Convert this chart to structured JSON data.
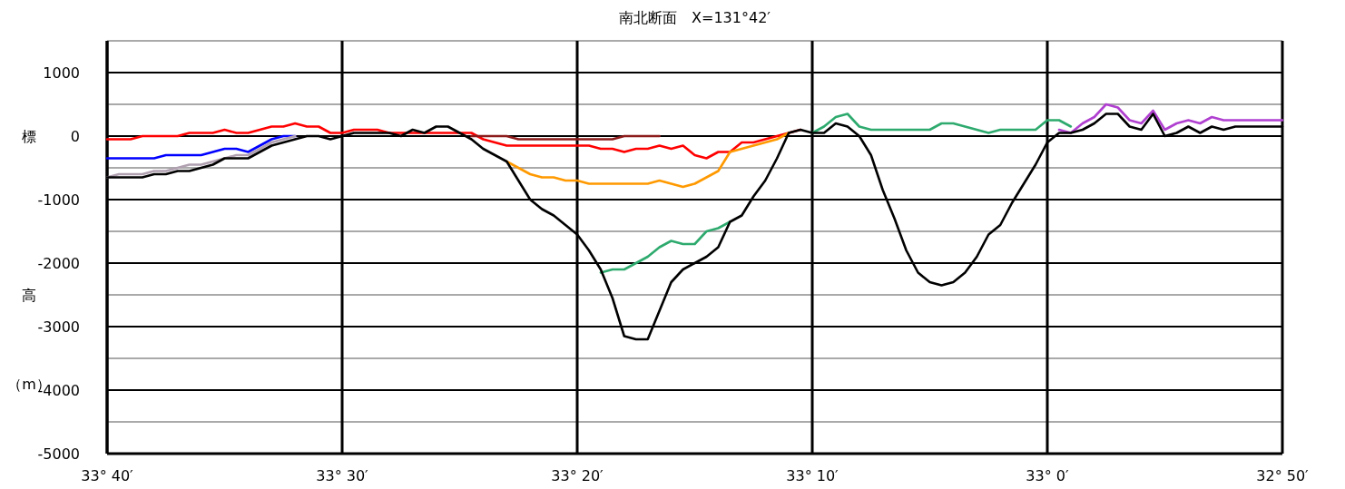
{
  "chart_data": {
    "type": "line",
    "title": "南北断面　X=131°42′",
    "ylabel": "標高（m）",
    "categories": [
      "33° 40′",
      null,
      null,
      null,
      null,
      null,
      null,
      null,
      null,
      null,
      null,
      null,
      null,
      null,
      null,
      null,
      null,
      null,
      null,
      null,
      "33° 30′",
      null,
      null,
      null,
      null,
      null,
      null,
      null,
      null,
      null,
      null,
      null,
      null,
      null,
      null,
      null,
      null,
      null,
      null,
      null,
      "33° 20′",
      null,
      null,
      null,
      null,
      null,
      null,
      null,
      null,
      null,
      null,
      null,
      null,
      null,
      null,
      null,
      null,
      null,
      null,
      null,
      "33° 10′",
      null,
      null,
      null,
      null,
      null,
      null,
      null,
      null,
      null,
      null,
      null,
      null,
      null,
      null,
      null,
      null,
      null,
      null,
      null,
      "33° 0′",
      null,
      null,
      null,
      null,
      null,
      null,
      null,
      null,
      null,
      null,
      null,
      null,
      null,
      null,
      null,
      null,
      null,
      null,
      null,
      "32° 50′"
    ],
    "ylim": [
      -5000,
      1500
    ],
    "yticks": [
      {
        "value": 1500,
        "label": null
      },
      1000,
      {
        "value": 500,
        "label": null
      },
      0,
      {
        "value": -500,
        "label": null
      },
      -1000,
      {
        "value": -1500,
        "label": null
      },
      -2000,
      {
        "value": -2500,
        "label": null
      },
      -3000,
      {
        "value": -3500,
        "label": null
      },
      -4000,
      {
        "value": -4500,
        "label": null
      },
      -5000
    ],
    "grid": true,
    "marker": "none",
    "line_style": "solid",
    "series": [
      {
        "color": "#ff0000",
        "values": [
          -50,
          -50,
          -50,
          0,
          0,
          0,
          0,
          50,
          50,
          50,
          100,
          50,
          50,
          100,
          150,
          150,
          200,
          150,
          150,
          50,
          50,
          100,
          100,
          100,
          50,
          50,
          50,
          50,
          50,
          50,
          50,
          50,
          -50,
          -100,
          -150,
          -150,
          -150,
          -150,
          -150,
          -150,
          -150,
          -150,
          -200,
          -200,
          -250,
          -200,
          -200,
          -150,
          -200,
          -150,
          -300,
          -350,
          -250,
          -250,
          -100,
          -100,
          -50,
          0,
          50,
          100,
          null,
          null,
          null,
          null,
          null,
          null,
          null,
          null,
          null,
          null,
          null,
          null,
          null,
          null,
          null,
          null,
          null,
          null,
          null,
          null,
          null,
          null,
          null,
          null,
          null,
          null,
          null,
          null,
          null,
          null,
          null,
          null,
          null,
          null,
          null,
          null,
          null,
          null,
          null,
          null,
          null
        ]
      },
      {
        "color": "#8b1a1a",
        "values": [
          null,
          null,
          null,
          null,
          null,
          null,
          null,
          null,
          null,
          null,
          null,
          null,
          null,
          null,
          null,
          null,
          null,
          null,
          null,
          null,
          null,
          null,
          null,
          null,
          null,
          null,
          null,
          null,
          null,
          null,
          null,
          0,
          0,
          0,
          0,
          -50,
          -50,
          -50,
          -50,
          -50,
          -50,
          -50,
          -50,
          -50,
          0,
          0,
          0,
          0,
          null,
          null,
          null,
          null,
          null,
          null,
          null,
          null,
          null,
          null,
          null,
          null,
          null,
          null,
          null,
          null,
          null,
          null,
          null,
          null,
          null,
          null,
          null,
          null,
          null,
          null,
          null,
          null,
          null,
          null,
          null,
          null,
          null,
          null,
          null,
          null,
          null,
          null,
          null,
          null,
          null,
          null,
          null,
          null,
          null,
          null,
          null,
          null,
          null,
          null,
          null,
          null,
          null
        ]
      },
      {
        "color": "#0000ff",
        "values": [
          -350,
          -350,
          -350,
          -350,
          -350,
          -300,
          -300,
          -300,
          -300,
          -250,
          -200,
          -200,
          -250,
          -150,
          -50,
          0,
          0,
          null,
          null,
          null,
          null,
          null,
          null,
          null,
          null,
          null,
          null,
          null,
          null,
          null,
          null,
          null,
          null,
          null,
          null,
          null,
          null,
          null,
          null,
          null,
          null,
          null,
          null,
          null,
          null,
          null,
          null,
          null,
          null,
          null,
          null,
          null,
          null,
          null,
          null,
          null,
          null,
          null,
          null,
          null,
          null,
          null,
          null,
          null,
          null,
          null,
          null,
          null,
          null,
          null,
          null,
          null,
          null,
          null,
          null,
          null,
          null,
          null,
          null,
          null,
          null,
          null,
          null,
          null,
          null,
          null,
          null,
          null,
          null,
          null,
          null,
          null,
          null,
          null,
          null,
          null,
          null,
          null,
          null,
          null,
          null
        ]
      },
      {
        "color": "#ff9900",
        "values": [
          null,
          null,
          null,
          null,
          null,
          null,
          null,
          null,
          null,
          null,
          null,
          null,
          null,
          null,
          null,
          null,
          null,
          null,
          null,
          null,
          null,
          null,
          null,
          null,
          null,
          null,
          null,
          null,
          null,
          null,
          null,
          null,
          null,
          null,
          -400,
          -500,
          -600,
          -650,
          -650,
          -700,
          -700,
          -750,
          -750,
          -750,
          -750,
          -750,
          -750,
          -700,
          -750,
          -800,
          -750,
          -650,
          -550,
          -250,
          -200,
          -150,
          -100,
          -50,
          50,
          null,
          null,
          null,
          null,
          null,
          null,
          null,
          null,
          null,
          null,
          null,
          null,
          null,
          null,
          null,
          null,
          null,
          null,
          null,
          null,
          null,
          null,
          null,
          null,
          null,
          null,
          null,
          null,
          null,
          null,
          null,
          null,
          null,
          null,
          null,
          null,
          null,
          null,
          null,
          null,
          null,
          null
        ]
      },
      {
        "color": "#2eaa6e",
        "values": [
          null,
          null,
          null,
          null,
          null,
          null,
          null,
          null,
          null,
          null,
          null,
          null,
          null,
          null,
          null,
          null,
          null,
          null,
          null,
          null,
          null,
          null,
          null,
          null,
          null,
          null,
          null,
          null,
          null,
          null,
          null,
          null,
          null,
          null,
          null,
          null,
          null,
          null,
          null,
          null,
          null,
          null,
          -2150,
          -2100,
          -2100,
          -2000,
          -1900,
          -1750,
          -1650,
          -1700,
          -1700,
          -1500,
          -1450,
          -1350,
          null,
          null,
          null,
          null,
          null,
          null,
          50,
          150,
          300,
          350,
          150,
          100,
          100,
          100,
          100,
          100,
          100,
          200,
          200,
          150,
          100,
          50,
          100,
          100,
          100,
          100,
          250,
          250,
          150,
          null,
          null,
          null,
          null,
          null,
          null,
          null,
          null,
          null,
          null,
          null,
          null,
          null,
          null,
          null,
          null,
          null,
          null
        ]
      },
      {
        "color": "#b0a0b0",
        "values": [
          -650,
          -600,
          -600,
          -600,
          -550,
          -550,
          -500,
          -450,
          -450,
          -400,
          -350,
          -300,
          -300,
          -200,
          -100,
          -50,
          0,
          null,
          null,
          null,
          null,
          null,
          null,
          null,
          null,
          null,
          null,
          null,
          null,
          null,
          null,
          null,
          null,
          null,
          null,
          null,
          null,
          null,
          null,
          null,
          null,
          null,
          null,
          null,
          null,
          null,
          null,
          null,
          null,
          null,
          null,
          null,
          null,
          null,
          null,
          null,
          null,
          null,
          null,
          null,
          null,
          null,
          null,
          null,
          null,
          null,
          null,
          null,
          null,
          null,
          null,
          null,
          null,
          null,
          null,
          null,
          null,
          null,
          null,
          null,
          null,
          null,
          null,
          null,
          null,
          null,
          null,
          null,
          null,
          null,
          null,
          null,
          null,
          null,
          null,
          null,
          null,
          null,
          null,
          null,
          null
        ]
      },
      {
        "color": "#b040d0",
        "values": [
          null,
          null,
          null,
          null,
          null,
          null,
          null,
          null,
          null,
          null,
          null,
          null,
          null,
          null,
          null,
          null,
          null,
          null,
          null,
          null,
          null,
          null,
          null,
          null,
          null,
          null,
          null,
          null,
          null,
          null,
          null,
          null,
          null,
          null,
          null,
          null,
          null,
          null,
          null,
          null,
          null,
          null,
          null,
          null,
          null,
          null,
          null,
          null,
          null,
          null,
          null,
          null,
          null,
          null,
          null,
          null,
          null,
          null,
          null,
          null,
          null,
          null,
          null,
          null,
          null,
          null,
          null,
          null,
          null,
          null,
          null,
          null,
          null,
          null,
          null,
          null,
          null,
          null,
          null,
          null,
          null,
          100,
          50,
          200,
          300,
          500,
          450,
          250,
          200,
          400,
          100,
          200,
          250,
          200,
          300,
          250,
          250,
          250,
          250,
          250,
          250
        ]
      },
      {
        "color": "#000000",
        "values": [
          -650,
          -650,
          -650,
          -650,
          -600,
          -600,
          -550,
          -550,
          -500,
          -450,
          -350,
          -350,
          -350,
          -250,
          -150,
          -100,
          -50,
          0,
          0,
          -50,
          0,
          50,
          50,
          50,
          50,
          0,
          100,
          50,
          150,
          150,
          50,
          -50,
          -200,
          -300,
          -400,
          -700,
          -1000,
          -1150,
          -1250,
          -1400,
          -1550,
          -1800,
          -2100,
          -2550,
          -3150,
          -3200,
          -3200,
          -2750,
          -2300,
          -2100,
          -2000,
          -1900,
          -1750,
          -1350,
          -1250,
          -950,
          -700,
          -350,
          50,
          100,
          50,
          50,
          200,
          150,
          0,
          -300,
          -850,
          -1300,
          -1800,
          -2150,
          -2300,
          -2350,
          -2300,
          -2150,
          -1900,
          -1550,
          -1400,
          -1050,
          -750,
          -450,
          -100,
          50,
          50,
          100,
          200,
          350,
          350,
          150,
          100,
          350,
          0,
          50,
          150,
          50,
          150,
          100,
          150,
          150,
          150,
          150,
          150
        ]
      }
    ]
  }
}
